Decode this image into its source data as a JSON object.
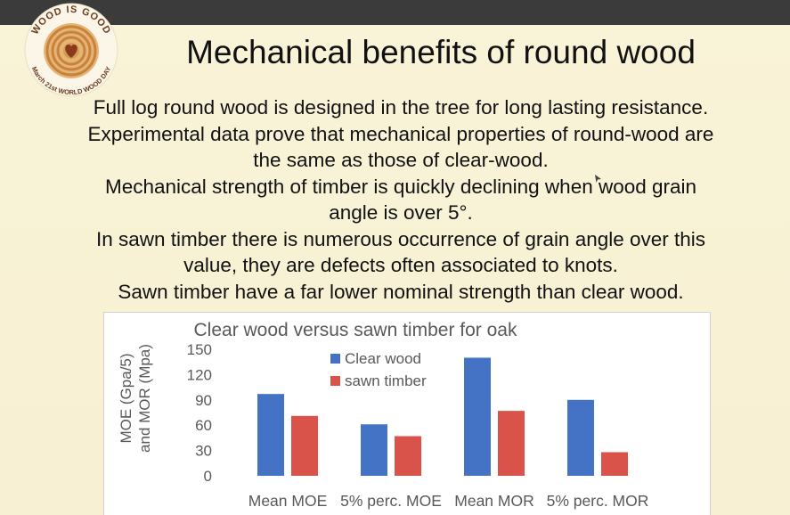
{
  "logo": {
    "ring_text_top": "WOOD IS GOOD",
    "ring_text_bottom": "March 21st WORLD WOOD DAY",
    "registered_mark": "®",
    "icon": "heart-tree-rings-logo"
  },
  "slide": {
    "title": "Mechanical benefits of round wood",
    "lines": [
      "Full log round wood is designed in the tree for long lasting resistance.",
      "Experimental data prove that mechanical properties of round-wood are",
      "the same as those of clear-wood.",
      "Mechanical strength of timber is quickly declining when wood grain",
      "angle is over 5°.",
      "In sawn timber there is numerous occurrence of grain angle over this",
      "value, they are defects often associated to knots.",
      "Sawn timber have a far lower nominal strength than clear wood."
    ]
  },
  "colors": {
    "clear_wood": "#4472c4",
    "sawn_timber": "#d9534a",
    "background": "#f8f1d5",
    "topbar": "#3b3b3b"
  },
  "chart_data": {
    "type": "bar",
    "title": "Clear wood versus sawn timber for oak",
    "ylabel_line1": "MOE (Gpa/5)",
    "ylabel_line2": "and MOR (Mpa)",
    "xlabel": "",
    "categories": [
      "Mean MOE",
      "5% perc. MOE",
      "Mean MOR",
      "5% perc. MOR"
    ],
    "series": [
      {
        "name": "Clear wood",
        "values": [
          97,
          61,
          140,
          90
        ]
      },
      {
        "name": "sawn timber",
        "values": [
          71,
          47,
          77,
          28
        ]
      }
    ],
    "yticks": [
      "0",
      "30",
      "60",
      "90",
      "120",
      "150"
    ],
    "ylim": [
      0,
      150
    ],
    "grid": false,
    "legend": "top-center"
  }
}
